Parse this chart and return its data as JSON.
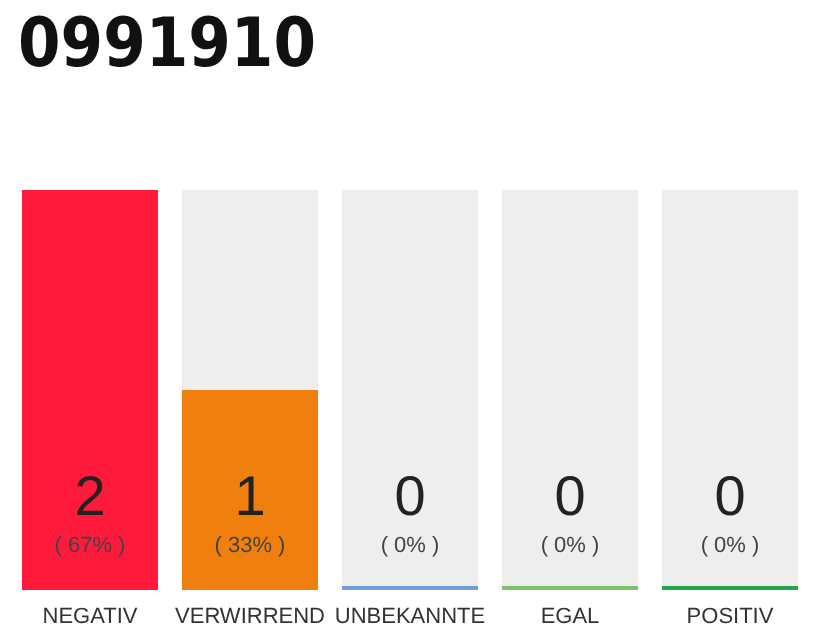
{
  "chart_data": {
    "type": "bar",
    "title": "0991910",
    "categories": [
      "NEGATIV",
      "VERWIRREND",
      "UNBEKANNTE",
      "EGAL",
      "POSITIV"
    ],
    "values": [
      2,
      1,
      0,
      0,
      0
    ],
    "colors": [
      "#ff1a3c",
      "#f07f0d",
      "#6f9fe0",
      "#7cc46a",
      "#22a64a"
    ],
    "value_labels": [
      "2\n( 67% )",
      "1\n( 33% )",
      "0\n( 0% )",
      "0\n( 0% )",
      "0\n( 0% )"
    ]
  }
}
